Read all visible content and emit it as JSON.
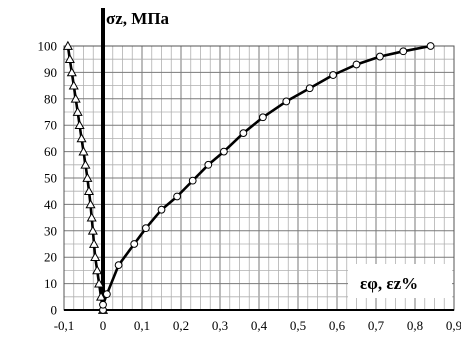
{
  "chart_data": {
    "type": "scatter",
    "title": "",
    "ylabel": "σz, МПа",
    "xlabel": "εφ, εz%",
    "xlim": [
      -0.1,
      0.9
    ],
    "ylim": [
      0,
      100
    ],
    "x_ticks": [
      "-0,1",
      "0",
      "0,1",
      "0,2",
      "0,3",
      "0,4",
      "0,5",
      "0,6",
      "0,7",
      "0,8",
      "0,9"
    ],
    "y_ticks": [
      "0",
      "10",
      "20",
      "30",
      "40",
      "50",
      "60",
      "70",
      "80",
      "90",
      "100"
    ],
    "grid": true,
    "series": [
      {
        "marker": "triangle-open",
        "line": "solid",
        "x": [
          0.0,
          -0.005,
          -0.01,
          -0.015,
          -0.02,
          -0.023,
          -0.026,
          -0.029,
          -0.032,
          -0.036,
          -0.04,
          -0.045,
          -0.05,
          -0.055,
          -0.06,
          -0.065,
          -0.07,
          -0.075,
          -0.08,
          -0.085,
          -0.09
        ],
        "y": [
          0,
          5,
          10,
          15,
          20,
          25,
          30,
          35,
          40,
          45,
          50,
          55,
          60,
          65,
          70,
          75,
          80,
          85,
          90,
          95,
          100
        ]
      },
      {
        "marker": "circle-open",
        "line": "solid",
        "x": [
          0.0,
          0.0,
          0.01,
          0.04,
          0.08,
          0.11,
          0.15,
          0.19,
          0.23,
          0.27,
          0.31,
          0.36,
          0.41,
          0.47,
          0.53,
          0.59,
          0.65,
          0.71,
          0.77,
          0.84
        ],
        "y": [
          0,
          2,
          6,
          17,
          25,
          31,
          38,
          43,
          49,
          55,
          60,
          67,
          73,
          79,
          84,
          89,
          93,
          96,
          98,
          100
        ]
      }
    ]
  }
}
